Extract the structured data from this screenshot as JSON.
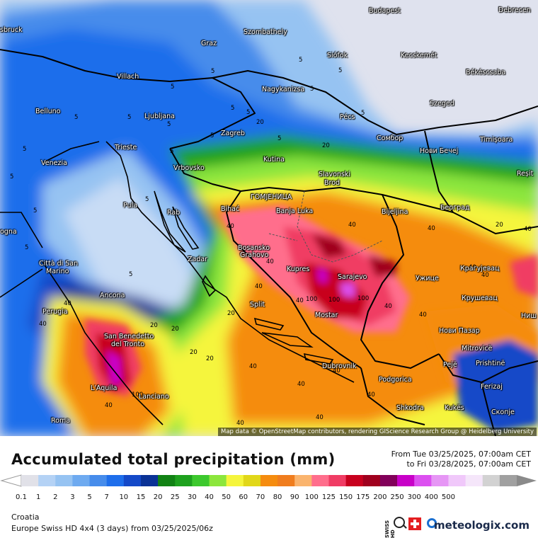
{
  "title": "Accumulated total precipitation (mm)",
  "period_from": "From Tue 03/25/2025, 07:00am CET",
  "period_to": "to Fri 03/28/2025, 07:00am CET",
  "region": "Croatia",
  "model_run": "Europe Swiss HD 4x4 (3 days) from 03/25/2025/06z",
  "attribution": "Map data © OpenStreetMap contributors, rendering GIScience Research Group @ Heidelberg University",
  "brand": "meteologix.com",
  "swiss_hd_label": "SWISS HD",
  "icons": {
    "search": "magnifier-icon",
    "flag": "swiss-flag-icon",
    "logo": "meteologix-logo-icon"
  },
  "legend": {
    "ticks": [
      "0.1",
      "1",
      "2",
      "3",
      "5",
      "7",
      "10",
      "15",
      "20",
      "25",
      "30",
      "40",
      "50",
      "60",
      "70",
      "80",
      "90",
      "100",
      "125",
      "150",
      "175",
      "200",
      "250",
      "300",
      "400",
      "500"
    ],
    "colors": [
      "#e1e1e8",
      "#b4d2f5",
      "#96c3f2",
      "#6eaaf0",
      "#468ceb",
      "#1e6eeb",
      "#1449c8",
      "#0a3296",
      "#118214",
      "#1ea11e",
      "#3cc82d",
      "#8ce63c",
      "#f5f53c",
      "#e1d719",
      "#f58c0f",
      "#f07d1e",
      "#fab46e",
      "#ff6e8c",
      "#f03c64",
      "#c8001e",
      "#a0001e",
      "#82005a",
      "#c800c8",
      "#dc50f0",
      "#e696f5",
      "#f0c8fa",
      "#f5e6fa",
      "#d2d2d2",
      "#a0a0a0"
    ]
  },
  "cities": [
    {
      "name": "Budapest"
    },
    {
      "name": "Debrecen"
    },
    {
      "name": "sbruck"
    },
    {
      "name": "Szombathely"
    },
    {
      "name": "Graz"
    },
    {
      "name": "Siófok"
    },
    {
      "name": "Kecskemét"
    },
    {
      "name": "Villach"
    },
    {
      "name": "Nagykanizsa"
    },
    {
      "name": "Békéscsaba"
    },
    {
      "name": "Belluno"
    },
    {
      "name": "Ljubljana"
    },
    {
      "name": "Pécs"
    },
    {
      "name": "Szeged"
    },
    {
      "name": "Zagreb"
    },
    {
      "name": "Сомбор"
    },
    {
      "name": "Trieste"
    },
    {
      "name": "Timișoara"
    },
    {
      "name": "Venezia"
    },
    {
      "name": "Vrbovsko"
    },
    {
      "name": "Kutina"
    },
    {
      "name": "Нови Бечеј"
    },
    {
      "name": "Slavonski"
    },
    {
      "name": "Brod"
    },
    {
      "name": "Reșit"
    },
    {
      "name": "ГОМЈЕНИЦА"
    },
    {
      "name": "Bihać"
    },
    {
      "name": "Banja Luka"
    },
    {
      "name": "Bijeljina"
    },
    {
      "name": "Београд"
    },
    {
      "name": "Pula"
    },
    {
      "name": "Rab"
    },
    {
      "name": "ogna"
    },
    {
      "name": "Bosansko"
    },
    {
      "name": "Grahovo"
    },
    {
      "name": "Zadar"
    },
    {
      "name": "Città di San"
    },
    {
      "name": "Marino"
    },
    {
      "name": "Kupres"
    },
    {
      "name": "Sarajevo"
    },
    {
      "name": "Ужице"
    },
    {
      "name": "Крагујевац"
    },
    {
      "name": "Ancona"
    },
    {
      "name": "Split"
    },
    {
      "name": "Mostar"
    },
    {
      "name": "Крушевац"
    },
    {
      "name": "Perugia"
    },
    {
      "name": "Ниш"
    },
    {
      "name": "San Benedetto"
    },
    {
      "name": "del Tronto"
    },
    {
      "name": "Нови Пазар"
    },
    {
      "name": "Mitrovicë"
    },
    {
      "name": "Dubrovnik"
    },
    {
      "name": "Pejë"
    },
    {
      "name": "Prishtinë"
    },
    {
      "name": "L'Aquila"
    },
    {
      "name": "Lanciano"
    },
    {
      "name": "Podgorica"
    },
    {
      "name": "Ferizaj"
    },
    {
      "name": "Shkodra"
    },
    {
      "name": "Kukës"
    },
    {
      "name": "Скопје"
    },
    {
      "name": "Roma"
    }
  ],
  "map_numbers": [
    "5",
    "5",
    "5",
    "5",
    "5",
    "5",
    "5",
    "5",
    "5",
    "5",
    "5",
    "5",
    "5",
    "5",
    "5",
    "5",
    "5",
    "5",
    "5",
    "5",
    "20",
    "20",
    "20",
    "20",
    "20",
    "20",
    "20",
    "20",
    "40",
    "40",
    "40",
    "40",
    "40",
    "40",
    "40",
    "40",
    "40",
    "40",
    "40",
    "40",
    "40",
    "40",
    "40",
    "40",
    "40",
    "40",
    "40",
    "40",
    "100",
    "100",
    "100",
    "100"
  ]
}
